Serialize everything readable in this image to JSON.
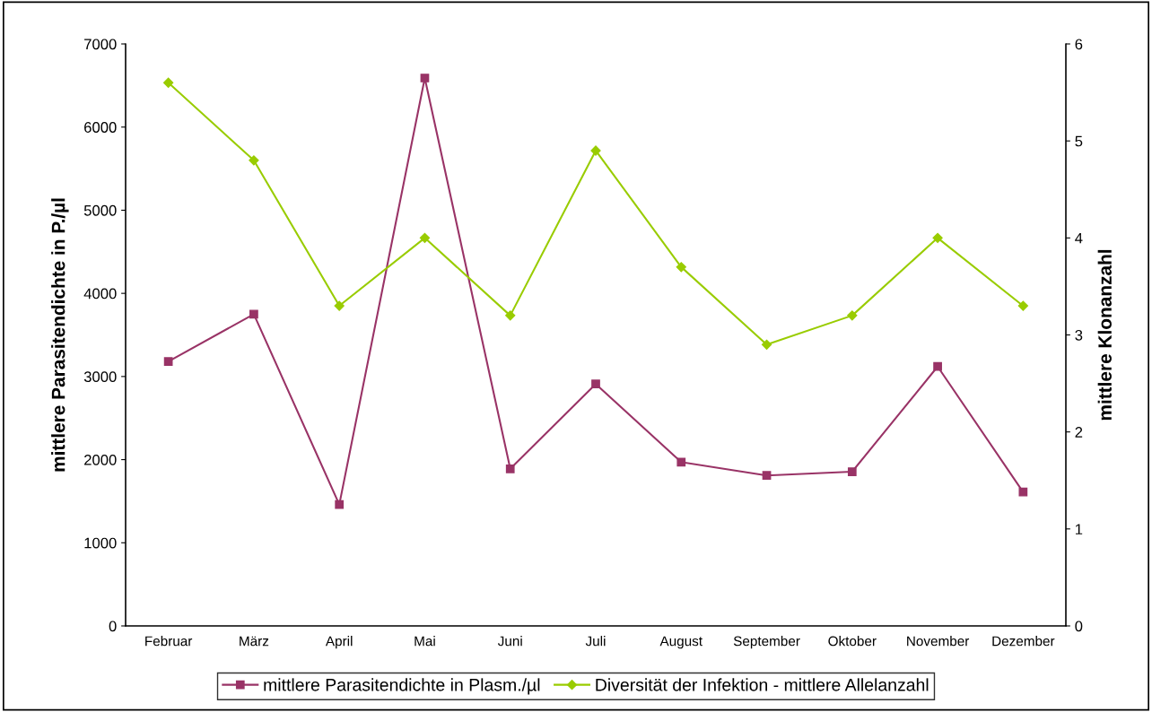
{
  "chart_data": {
    "type": "line",
    "ylabel": "mittlere Parasitendichte in P./µl",
    "y2label": "mittlere Klonanzahl",
    "categories": [
      "Februar",
      "März",
      "April",
      "Mai",
      "Juni",
      "Juli",
      "August",
      "September",
      "Oktober",
      "November",
      "Dezember"
    ],
    "series": [
      {
        "name": "mittlere Parasitendichte in Plasm./µl",
        "color": "#993366",
        "marker": "square",
        "values": [
          3180,
          3750,
          1460,
          6590,
          1890,
          2910,
          1970,
          1810,
          1855,
          3120,
          1610
        ]
      },
      {
        "name": "Diversität der Infektion - mittlere Allelanzahl",
        "color": "#99cc00",
        "marker": "diamond",
        "axis": "y2",
        "values": [
          5.6,
          4.8,
          3.3,
          4.0,
          3.2,
          4.9,
          3.7,
          2.9,
          3.2,
          4.0,
          3.3
        ]
      }
    ],
    "ylim": [
      0,
      7000
    ],
    "yticks": [
      0,
      1000,
      2000,
      3000,
      4000,
      5000,
      6000,
      7000
    ],
    "y2lim": [
      0,
      6
    ],
    "y2ticks": [
      0,
      1,
      2,
      3,
      4,
      5,
      6
    ],
    "grid": false,
    "legend": "bottom",
    "line_style": "solid"
  }
}
